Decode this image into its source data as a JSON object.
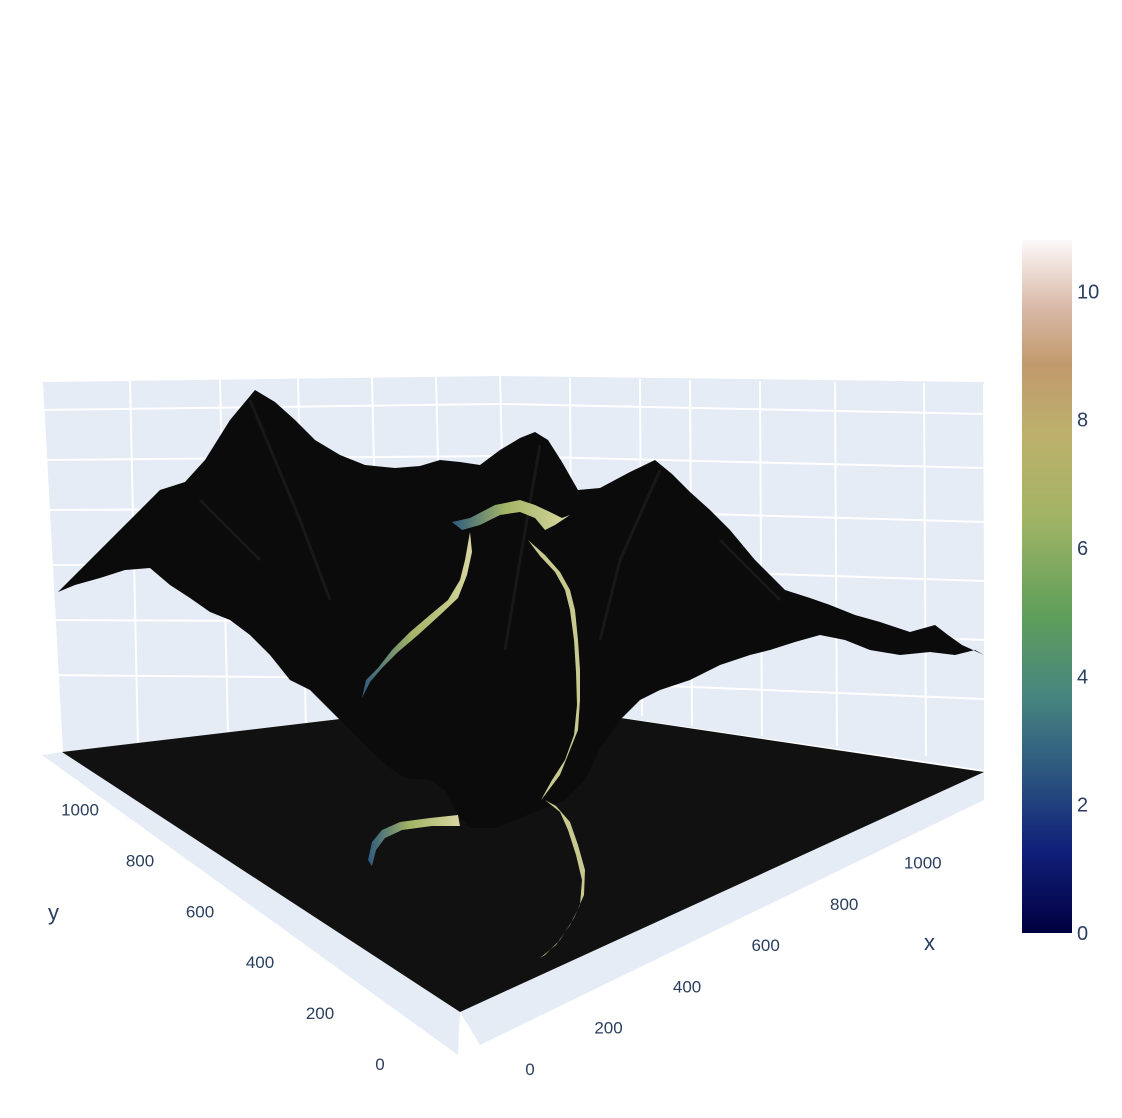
{
  "chart_data": {
    "type": "surface",
    "title": "",
    "colorscale": "gist_earth",
    "scene": {
      "background_color": "#e5ecf6",
      "grid_color": "#ffffff",
      "x_axis": {
        "title": "x",
        "ticks": [
          "0",
          "200",
          "400",
          "600",
          "800",
          "1000"
        ],
        "range": [
          0,
          1100
        ]
      },
      "y_axis": {
        "title": "y",
        "ticks": [
          "0",
          "200",
          "400",
          "600",
          "800",
          "1000"
        ],
        "range": [
          0,
          1100
        ]
      }
    },
    "colorbar": {
      "range": [
        0,
        10.8
      ],
      "ticks": [
        "0",
        "2",
        "4",
        "6",
        "8",
        "10"
      ],
      "tick_values": [
        0,
        2,
        4,
        6,
        8,
        10
      ],
      "stops": [
        {
          "v": 0.0,
          "c": "#000040"
        },
        {
          "v": 0.12,
          "c": "#10207a"
        },
        {
          "v": 0.24,
          "c": "#2e5a80"
        },
        {
          "v": 0.34,
          "c": "#46857f"
        },
        {
          "v": 0.46,
          "c": "#5f9f5a"
        },
        {
          "v": 0.6,
          "c": "#a2b465"
        },
        {
          "v": 0.72,
          "c": "#bdb06c"
        },
        {
          "v": 0.82,
          "c": "#c19a6c"
        },
        {
          "v": 0.9,
          "c": "#d8b8a6"
        },
        {
          "v": 1.0,
          "c": "#fdf9f9"
        }
      ]
    },
    "surface_color": "#0b0b0b",
    "floor_color": "#111111"
  }
}
